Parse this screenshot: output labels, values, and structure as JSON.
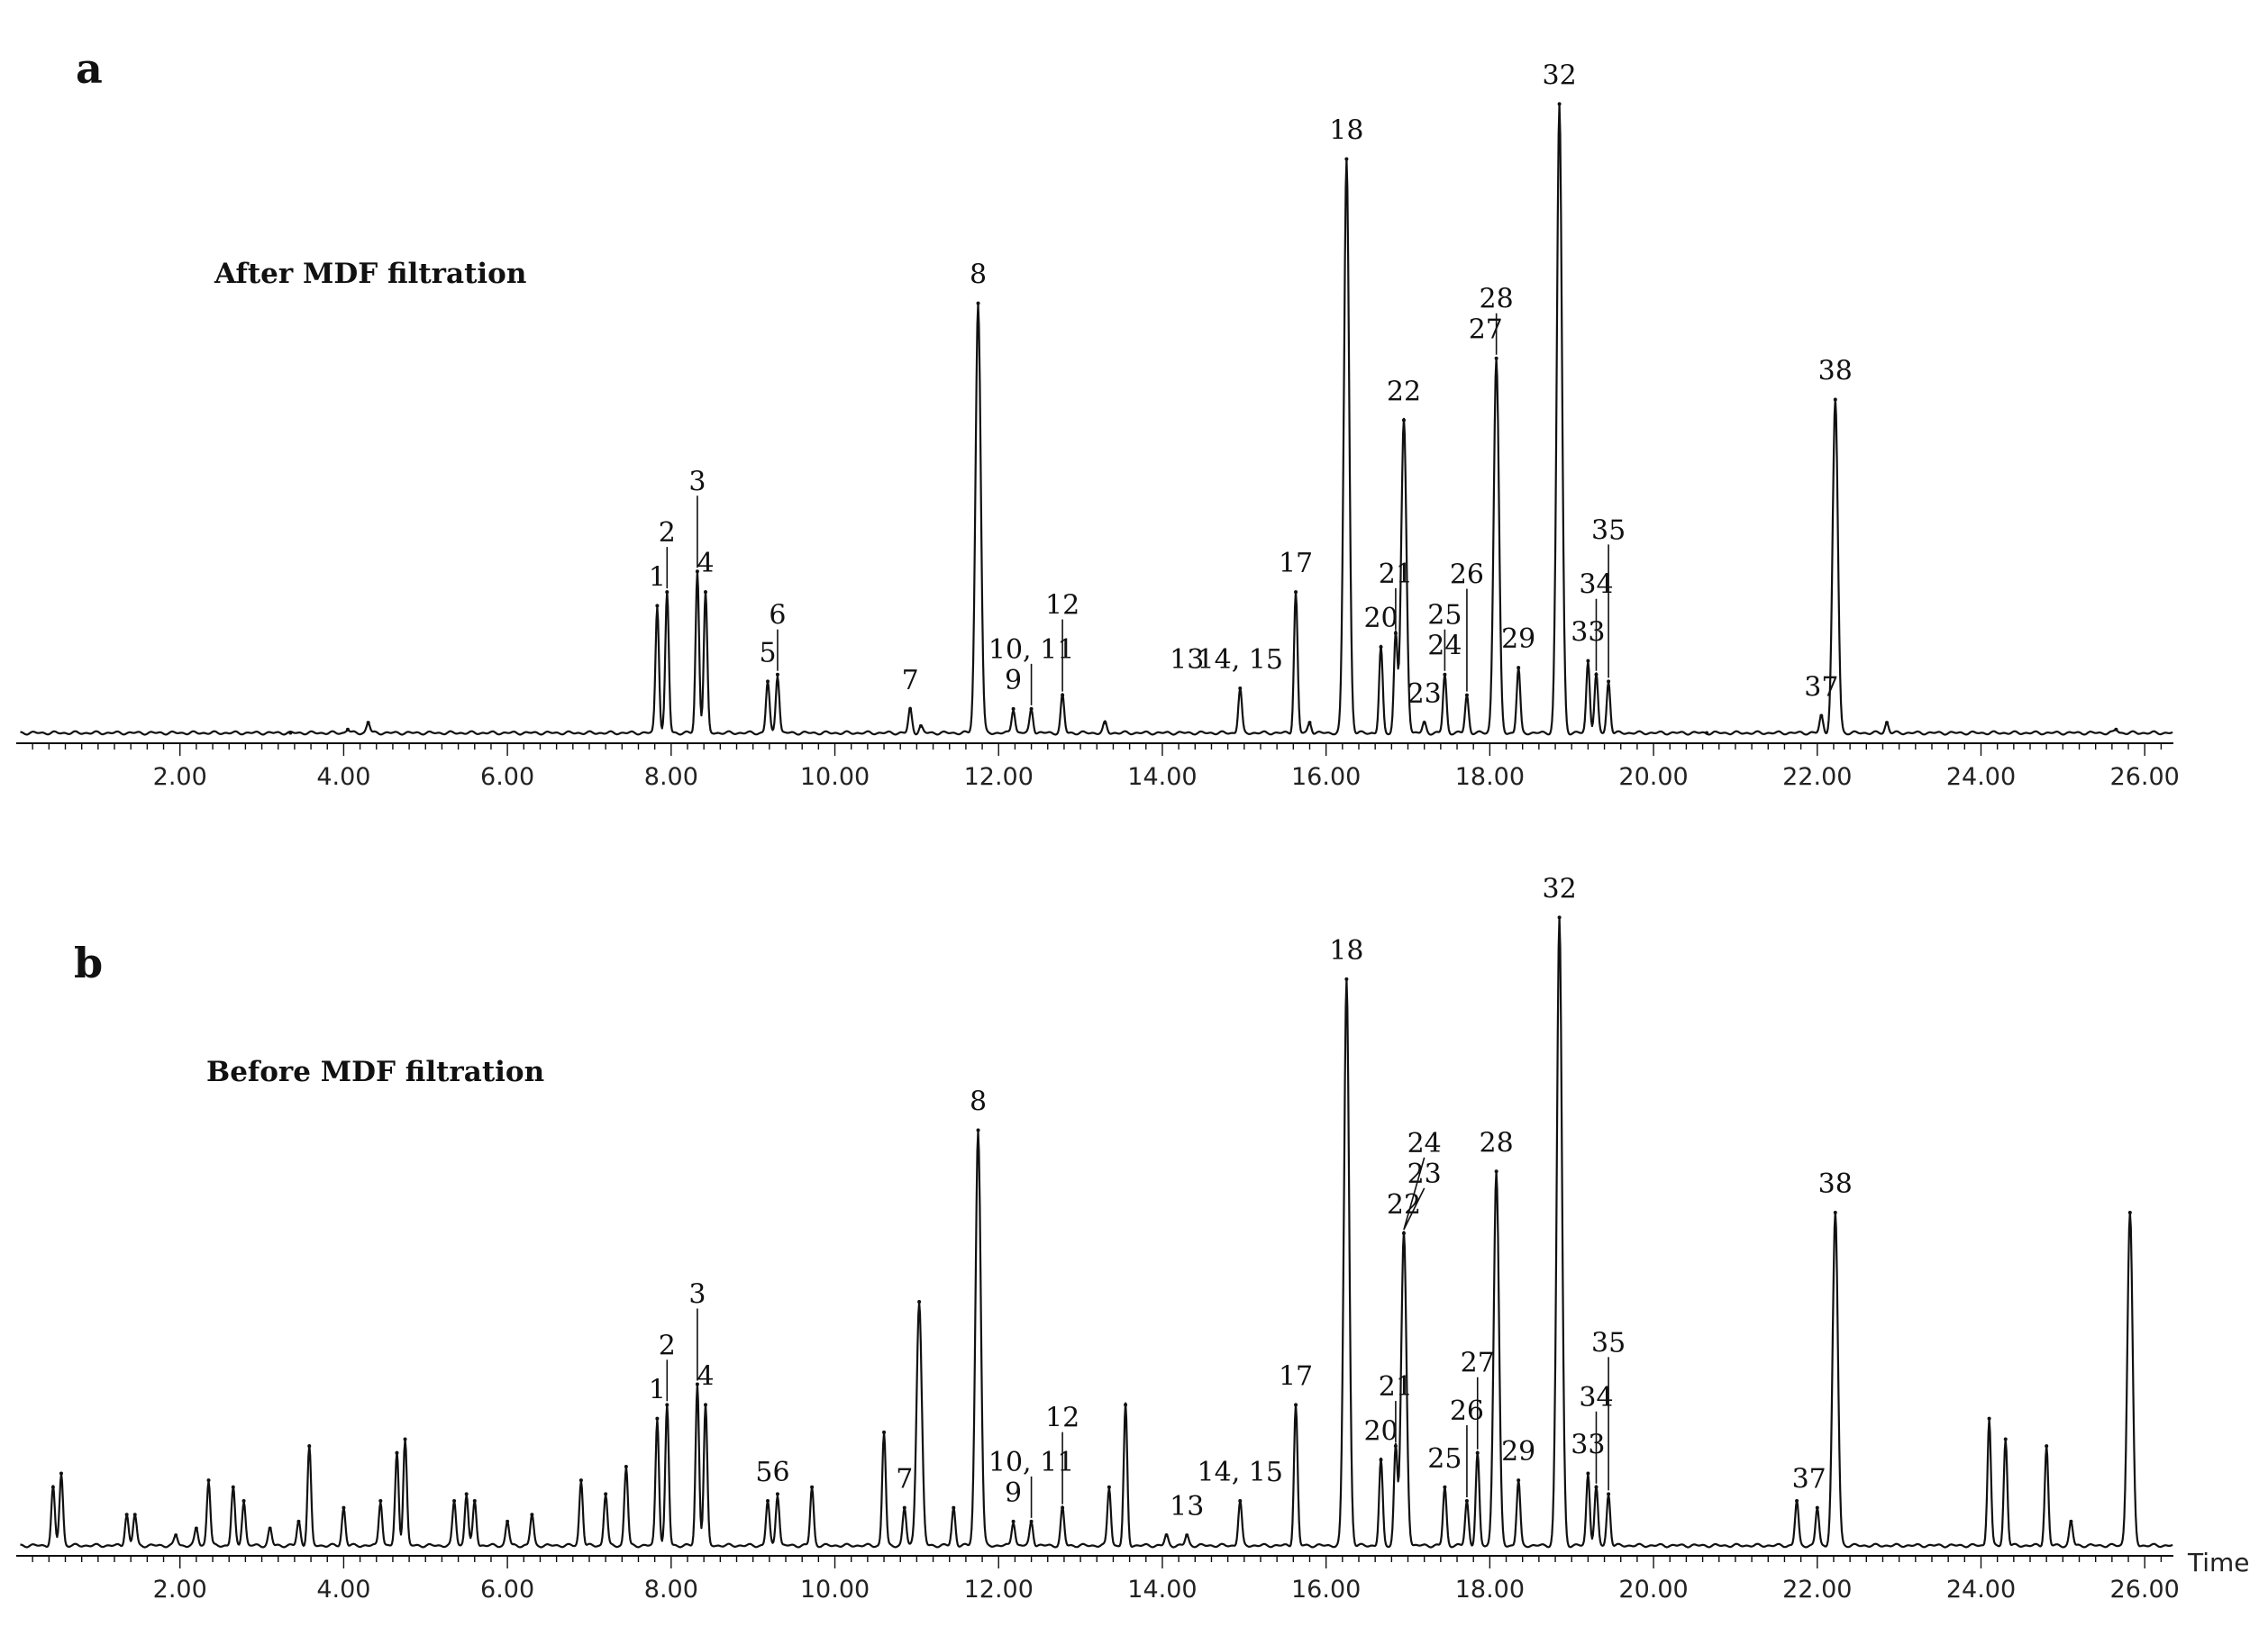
{
  "chart_data": {
    "type": "line",
    "description_free": true,
    "xlim": [
      0.0,
      26.35
    ],
    "x_ticks": [
      "2.00",
      "4.00",
      "6.00",
      "8.00",
      "10.00",
      "12.00",
      "14.00",
      "16.00",
      "18.00",
      "20.00",
      "22.00",
      "24.00",
      "26.00"
    ],
    "x_tick_values": [
      2,
      4,
      6,
      8,
      10,
      12,
      14,
      16,
      18,
      20,
      22,
      24,
      26
    ],
    "ylim": [
      0,
      100
    ],
    "panels": [
      {
        "letter": "a",
        "title": "After MDF filtration",
        "xlabel": "",
        "baseline": 1.5,
        "peaks": [
          {
            "x": 7.83,
            "y": 20
          },
          {
            "x": 7.95,
            "y": 22
          },
          {
            "x": 8.32,
            "y": 25
          },
          {
            "x": 8.42,
            "y": 22
          },
          {
            "x": 9.18,
            "y": 9
          },
          {
            "x": 9.3,
            "y": 10
          },
          {
            "x": 10.92,
            "y": 5
          },
          {
            "x": 11.75,
            "y": 64
          },
          {
            "x": 12.18,
            "y": 5
          },
          {
            "x": 12.4,
            "y": 5
          },
          {
            "x": 12.78,
            "y": 7
          },
          {
            "x": 14.95,
            "y": 8
          },
          {
            "x": 15.63,
            "y": 22
          },
          {
            "x": 16.25,
            "y": 85
          },
          {
            "x": 16.67,
            "y": 14
          },
          {
            "x": 16.85,
            "y": 16
          },
          {
            "x": 16.95,
            "y": 47
          },
          {
            "x": 17.2,
            "y": 3
          },
          {
            "x": 17.45,
            "y": 10
          },
          {
            "x": 17.72,
            "y": 7
          },
          {
            "x": 18.08,
            "y": 56
          },
          {
            "x": 18.35,
            "y": 11
          },
          {
            "x": 18.85,
            "y": 93
          },
          {
            "x": 19.2,
            "y": 12
          },
          {
            "x": 19.3,
            "y": 10
          },
          {
            "x": 19.45,
            "y": 9
          },
          {
            "x": 22.05,
            "y": 4
          },
          {
            "x": 22.22,
            "y": 50
          },
          {
            "x": 4.3,
            "y": 3
          },
          {
            "x": 4.05,
            "y": 2
          },
          {
            "x": 3.35,
            "y": 1.5
          },
          {
            "x": 11.05,
            "y": 2.5
          },
          {
            "x": 13.3,
            "y": 3
          },
          {
            "x": 15.8,
            "y": 3
          },
          {
            "x": 22.85,
            "y": 3
          },
          {
            "x": 25.65,
            "y": 2
          },
          {
            "x": 20.65,
            "y": 1.5
          }
        ],
        "labels": [
          {
            "text": "1",
            "x": 7.83
          },
          {
            "text": "2",
            "x": 7.95
          },
          {
            "text": "3",
            "x": 8.32
          },
          {
            "text": "4",
            "x": 8.42
          },
          {
            "text": "5",
            "x": 9.18
          },
          {
            "text": "6",
            "x": 9.3
          },
          {
            "text": "7",
            "x": 10.92
          },
          {
            "text": "8",
            "x": 11.75
          },
          {
            "text": "9",
            "x": 12.18
          },
          {
            "text": "10, 11",
            "x": 12.4
          },
          {
            "text": "12",
            "x": 12.78
          },
          {
            "text": "13",
            "x": 14.3
          },
          {
            "text": "14, 15",
            "x": 14.95
          },
          {
            "text": "17",
            "x": 15.63
          },
          {
            "text": "18",
            "x": 16.25
          },
          {
            "text": "20",
            "x": 16.67
          },
          {
            "text": "21",
            "x": 16.85
          },
          {
            "text": "22",
            "x": 16.95
          },
          {
            "text": "23",
            "x": 17.2
          },
          {
            "text": "24",
            "x": 17.45
          },
          {
            "text": "25",
            "x": 17.45
          },
          {
            "text": "26",
            "x": 17.72
          },
          {
            "text": "27",
            "x": 17.95
          },
          {
            "text": "28",
            "x": 18.08
          },
          {
            "text": "29",
            "x": 18.35
          },
          {
            "text": "32",
            "x": 18.85
          },
          {
            "text": "33",
            "x": 19.2
          },
          {
            "text": "34",
            "x": 19.3
          },
          {
            "text": "35",
            "x": 19.45
          },
          {
            "text": "37",
            "x": 22.05
          },
          {
            "text": "38",
            "x": 22.22
          }
        ]
      },
      {
        "letter": "b",
        "title": "Before MDF filtration",
        "xlabel": "Time",
        "baseline": 1.5,
        "peaks": [
          {
            "x": 0.45,
            "y": 10
          },
          {
            "x": 0.55,
            "y": 12
          },
          {
            "x": 1.35,
            "y": 6
          },
          {
            "x": 1.45,
            "y": 6
          },
          {
            "x": 1.95,
            "y": 3
          },
          {
            "x": 2.2,
            "y": 4
          },
          {
            "x": 2.35,
            "y": 11
          },
          {
            "x": 2.65,
            "y": 10
          },
          {
            "x": 2.78,
            "y": 8
          },
          {
            "x": 3.1,
            "y": 4
          },
          {
            "x": 3.45,
            "y": 5
          },
          {
            "x": 3.58,
            "y": 16
          },
          {
            "x": 4.0,
            "y": 7
          },
          {
            "x": 4.45,
            "y": 8
          },
          {
            "x": 4.65,
            "y": 15
          },
          {
            "x": 4.75,
            "y": 17
          },
          {
            "x": 5.35,
            "y": 8
          },
          {
            "x": 5.5,
            "y": 9
          },
          {
            "x": 5.6,
            "y": 8
          },
          {
            "x": 6.0,
            "y": 5
          },
          {
            "x": 6.3,
            "y": 6
          },
          {
            "x": 6.9,
            "y": 11
          },
          {
            "x": 7.2,
            "y": 9
          },
          {
            "x": 7.45,
            "y": 13
          },
          {
            "x": 7.83,
            "y": 20
          },
          {
            "x": 7.95,
            "y": 22
          },
          {
            "x": 8.32,
            "y": 25
          },
          {
            "x": 8.42,
            "y": 22
          },
          {
            "x": 9.18,
            "y": 8
          },
          {
            "x": 9.3,
            "y": 9
          },
          {
            "x": 9.72,
            "y": 10
          },
          {
            "x": 10.6,
            "y": 18
          },
          {
            "x": 10.85,
            "y": 7
          },
          {
            "x": 11.03,
            "y": 37
          },
          {
            "x": 11.45,
            "y": 7
          },
          {
            "x": 11.75,
            "y": 62
          },
          {
            "x": 12.18,
            "y": 5
          },
          {
            "x": 12.4,
            "y": 5
          },
          {
            "x": 12.78,
            "y": 7
          },
          {
            "x": 13.35,
            "y": 10
          },
          {
            "x": 13.55,
            "y": 22
          },
          {
            "x": 14.05,
            "y": 3
          },
          {
            "x": 14.3,
            "y": 3
          },
          {
            "x": 14.95,
            "y": 8
          },
          {
            "x": 15.63,
            "y": 22
          },
          {
            "x": 16.25,
            "y": 84
          },
          {
            "x": 16.67,
            "y": 14
          },
          {
            "x": 16.85,
            "y": 16
          },
          {
            "x": 16.95,
            "y": 47
          },
          {
            "x": 17.45,
            "y": 10
          },
          {
            "x": 17.72,
            "y": 8
          },
          {
            "x": 17.85,
            "y": 15
          },
          {
            "x": 18.08,
            "y": 56
          },
          {
            "x": 18.35,
            "y": 11
          },
          {
            "x": 18.85,
            "y": 93
          },
          {
            "x": 19.2,
            "y": 12
          },
          {
            "x": 19.3,
            "y": 10
          },
          {
            "x": 19.45,
            "y": 9
          },
          {
            "x": 21.75,
            "y": 8
          },
          {
            "x": 22.0,
            "y": 7
          },
          {
            "x": 22.22,
            "y": 50
          },
          {
            "x": 24.1,
            "y": 20
          },
          {
            "x": 24.3,
            "y": 17
          },
          {
            "x": 24.8,
            "y": 16
          },
          {
            "x": 25.1,
            "y": 5
          },
          {
            "x": 25.82,
            "y": 50
          }
        ],
        "labels": [
          {
            "text": "1",
            "x": 7.83
          },
          {
            "text": "2",
            "x": 7.95
          },
          {
            "text": "3",
            "x": 8.32
          },
          {
            "text": "4",
            "x": 8.42
          },
          {
            "text": "56",
            "x": 9.24
          },
          {
            "text": "7",
            "x": 10.85
          },
          {
            "text": "8",
            "x": 11.75
          },
          {
            "text": "9",
            "x": 12.18
          },
          {
            "text": "10, 11",
            "x": 12.4
          },
          {
            "text": "12",
            "x": 12.78
          },
          {
            "text": "13",
            "x": 14.3
          },
          {
            "text": "14, 15",
            "x": 14.95
          },
          {
            "text": "17",
            "x": 15.63
          },
          {
            "text": "18",
            "x": 16.25
          },
          {
            "text": "20",
            "x": 16.67
          },
          {
            "text": "21",
            "x": 16.85
          },
          {
            "text": "22",
            "x": 16.95
          },
          {
            "text": "23",
            "x": 17.2
          },
          {
            "text": "24",
            "x": 17.2
          },
          {
            "text": "25",
            "x": 17.45
          },
          {
            "text": "26",
            "x": 17.72
          },
          {
            "text": "27",
            "x": 17.85
          },
          {
            "text": "28",
            "x": 18.08
          },
          {
            "text": "29",
            "x": 18.35
          },
          {
            "text": "32",
            "x": 18.85
          },
          {
            "text": "33",
            "x": 19.2
          },
          {
            "text": "34",
            "x": 19.3
          },
          {
            "text": "35",
            "x": 19.45
          },
          {
            "text": "37",
            "x": 21.9
          },
          {
            "text": "38",
            "x": 22.22
          }
        ]
      }
    ]
  }
}
